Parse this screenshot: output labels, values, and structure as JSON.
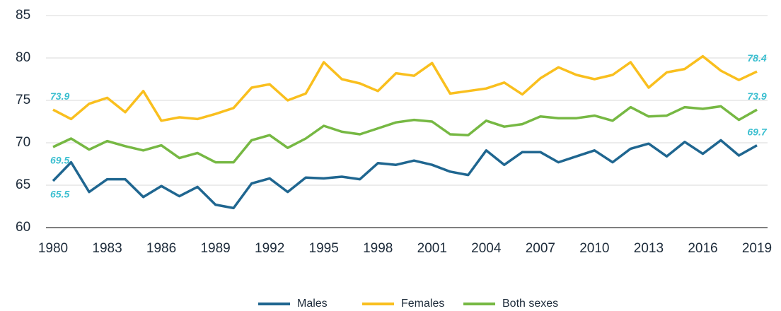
{
  "chart_data": {
    "type": "line",
    "x": [
      1980,
      1981,
      1982,
      1983,
      1984,
      1985,
      1986,
      1987,
      1988,
      1989,
      1990,
      1991,
      1992,
      1993,
      1994,
      1995,
      1996,
      1997,
      1998,
      1999,
      2000,
      2001,
      2002,
      2003,
      2004,
      2005,
      2006,
      2007,
      2008,
      2009,
      2010,
      2011,
      2012,
      2013,
      2014,
      2015,
      2016,
      2017,
      2018,
      2019
    ],
    "xlim": [
      1980,
      2019
    ],
    "xticks": [
      1980,
      1983,
      1986,
      1989,
      1992,
      1995,
      1998,
      2001,
      2004,
      2007,
      2010,
      2013,
      2016,
      2019
    ],
    "ylim": [
      60,
      85
    ],
    "yticks": [
      60,
      65,
      70,
      75,
      80,
      85
    ],
    "grid": true,
    "legend": "bottom",
    "series": [
      {
        "name": "Males",
        "color": "#1f6690",
        "values": [
          65.5,
          67.7,
          64.2,
          65.7,
          65.7,
          63.6,
          64.9,
          63.7,
          64.8,
          62.7,
          62.3,
          65.2,
          65.8,
          64.2,
          65.9,
          65.8,
          66.0,
          65.7,
          67.6,
          67.4,
          67.9,
          67.4,
          66.6,
          66.2,
          69.1,
          67.4,
          68.9,
          68.9,
          67.7,
          68.4,
          69.1,
          67.7,
          69.3,
          69.9,
          68.4,
          70.1,
          68.7,
          70.3,
          68.5,
          69.7
        ],
        "value_labels": [
          "65.5",
          null,
          null,
          null,
          null,
          null,
          null,
          null,
          null,
          null,
          null,
          null,
          null,
          null,
          null,
          null,
          null,
          null,
          null,
          null,
          null,
          null,
          null,
          null,
          null,
          null,
          null,
          null,
          null,
          null,
          null,
          null,
          null,
          null,
          null,
          null,
          null,
          null,
          null,
          "69.7"
        ]
      },
      {
        "name": "Females",
        "color": "#f9bf1e",
        "values": [
          73.9,
          72.8,
          74.6,
          75.3,
          73.6,
          76.1,
          72.6,
          73.0,
          72.8,
          73.4,
          74.1,
          76.5,
          76.9,
          75.0,
          75.8,
          79.5,
          77.5,
          77.0,
          76.1,
          78.2,
          77.9,
          79.4,
          75.8,
          76.1,
          76.4,
          77.1,
          75.7,
          77.6,
          78.9,
          78.0,
          77.5,
          78.0,
          79.5,
          76.5,
          78.3,
          78.7,
          80.2,
          78.5,
          77.4,
          78.4
        ],
        "value_labels": [
          "73.9",
          null,
          null,
          null,
          null,
          null,
          null,
          null,
          null,
          null,
          null,
          null,
          null,
          null,
          null,
          null,
          null,
          null,
          null,
          null,
          null,
          null,
          null,
          null,
          null,
          null,
          null,
          null,
          null,
          null,
          null,
          null,
          null,
          null,
          null,
          null,
          null,
          null,
          null,
          "78.4"
        ]
      },
      {
        "name": "Both sexes",
        "color": "#76b843",
        "values": [
          69.5,
          70.5,
          69.2,
          70.2,
          69.6,
          69.1,
          69.7,
          68.2,
          68.8,
          67.7,
          67.7,
          70.3,
          70.9,
          69.4,
          70.5,
          72.0,
          71.3,
          71.0,
          71.7,
          72.4,
          72.7,
          72.5,
          71.0,
          70.9,
          72.6,
          71.9,
          72.2,
          73.1,
          72.9,
          72.9,
          73.2,
          72.6,
          74.2,
          73.1,
          73.2,
          74.2,
          74.0,
          74.3,
          72.7,
          73.9
        ],
        "value_labels": [
          "69.5",
          null,
          null,
          null,
          null,
          null,
          null,
          null,
          null,
          null,
          null,
          null,
          null,
          null,
          null,
          null,
          null,
          null,
          null,
          null,
          null,
          null,
          null,
          null,
          null,
          null,
          null,
          null,
          null,
          null,
          null,
          null,
          null,
          null,
          null,
          null,
          null,
          null,
          null,
          "73.9"
        ]
      }
    ]
  }
}
